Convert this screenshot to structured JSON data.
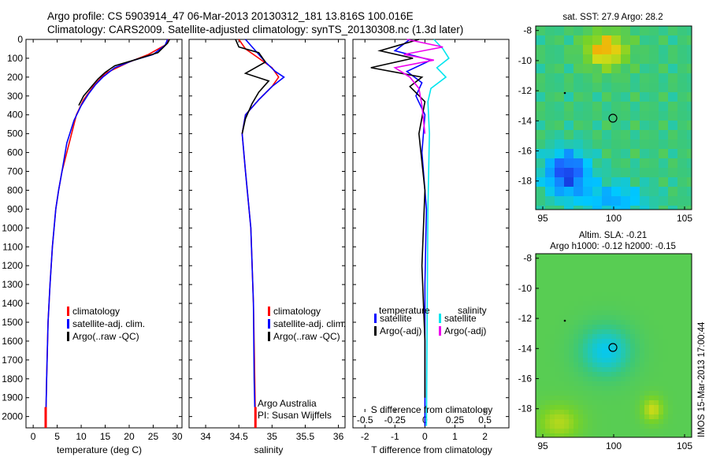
{
  "header": {
    "line1": "Argo profile: CS 5903914_47 06-Mar-2013 20130312_181 13.816S 100.016E",
    "line2": "Climatology: CARS2009. Satellite-adjusted climatology: synTS_20130308.nc (1.3d later)"
  },
  "depth_ticks": [
    "0",
    "100",
    "200",
    "300",
    "400",
    "500",
    "600",
    "700",
    "800",
    "900",
    "1000",
    "1100",
    "1200",
    "1300",
    "1400",
    "1500",
    "1600",
    "1700",
    "1800",
    "1900",
    "2000"
  ],
  "colors": {
    "climatology": "#ff0000",
    "satellite": "#0000ff",
    "argo": "#000000",
    "sat_diff_s": "#00e5ee",
    "argo_diff_s": "#ee00ee"
  },
  "chart_data": [
    {
      "type": "line",
      "xlabel": "temperature (deg C)",
      "ylabel": "",
      "xlim": [
        -1.5,
        31
      ],
      "ylim": [
        2060,
        0
      ],
      "x_ticks": [
        "0",
        "5",
        "10",
        "15",
        "20",
        "25",
        "30"
      ],
      "legend": [
        "climatology",
        "satellite-adj. clim.",
        "Argo(..raw -QC)"
      ],
      "legend_position": "lower-center",
      "series": [
        {
          "name": "climatology",
          "color": "#ff0000",
          "x": [
            28.3,
            27.5,
            24,
            20,
            15,
            12.5,
            10.5,
            9,
            8,
            7,
            6,
            5.3,
            4.7,
            4,
            3.5,
            3.1,
            2.8,
            2.6
          ],
          "y": [
            0,
            30,
            80,
            120,
            180,
            250,
            320,
            400,
            500,
            600,
            700,
            800,
            900,
            1100,
            1300,
            1500,
            1800,
            2050
          ]
        },
        {
          "name": "satellite-adj. clim.",
          "color": "#0000ff",
          "x": [
            28,
            27.5,
            25,
            21,
            17,
            14.5,
            13,
            11.5,
            10,
            8.5,
            7,
            6,
            5.3,
            4.7,
            4,
            3.5,
            3.1,
            2.8,
            2.6
          ],
          "y": [
            0,
            30,
            80,
            110,
            150,
            200,
            240,
            290,
            350,
            430,
            550,
            700,
            800,
            900,
            1100,
            1300,
            1500,
            1800,
            2050
          ]
        },
        {
          "name": "Argo(..raw -QC)",
          "color": "#000000",
          "x": [
            28.4,
            28,
            26,
            21,
            17,
            15,
            13.5,
            12.5,
            11.5,
            10.5,
            9.5
          ],
          "y": [
            0,
            20,
            70,
            110,
            140,
            175,
            210,
            240,
            270,
            300,
            350
          ]
        }
      ]
    },
    {
      "type": "line",
      "xlabel": "salinity",
      "ylabel": "",
      "xlim": [
        33.75,
        36.1
      ],
      "ylim": [
        2060,
        0
      ],
      "x_ticks": [
        "34",
        "34.5",
        "35",
        "35.5",
        "36"
      ],
      "legend": [
        "climatology",
        "satellite-adj. clim.",
        "Argo(..raw -QC)"
      ],
      "annotations": [
        "Argo Australia",
        "PI: Susan Wijffels"
      ],
      "series": [
        {
          "name": "climatology",
          "color": "#ff0000",
          "x": [
            34.5,
            34.6,
            34.8,
            35,
            35.1,
            35,
            34.8,
            34.6,
            34.55,
            34.6,
            34.68,
            34.72,
            34.74,
            34.75
          ],
          "y": [
            0,
            50,
            100,
            150,
            200,
            250,
            320,
            400,
            500,
            700,
            1000,
            1400,
            1800,
            2050
          ]
        },
        {
          "name": "satellite-adj. clim.",
          "color": "#0000ff",
          "x": [
            34.6,
            34.75,
            34.9,
            35.05,
            35.18,
            35,
            34.8,
            34.6,
            34.55,
            34.6,
            34.68,
            34.72,
            34.73,
            34.74
          ],
          "y": [
            0,
            60,
            120,
            170,
            200,
            250,
            320,
            400,
            500,
            700,
            1000,
            1400,
            1800,
            1950
          ]
        },
        {
          "name": "Argo(..raw -QC)",
          "color": "#000000",
          "x": [
            34.45,
            34.5,
            34.8,
            34.9,
            34.6,
            34.95,
            34.8,
            34.7,
            34.6,
            34.55
          ],
          "y": [
            0,
            40,
            70,
            120,
            180,
            220,
            280,
            340,
            420,
            500
          ]
        }
      ]
    },
    {
      "type": "line",
      "xlabel": "T difference from climatology",
      "ylabel": "",
      "title_bottom": "S difference from climatology",
      "xlim": [
        -2.4,
        2.8
      ],
      "ylim": [
        2060,
        0
      ],
      "x_ticks": [
        "-2",
        "-1",
        "0",
        "1",
        "2"
      ],
      "top_ticks": [
        "-0.5",
        "-0.25",
        "0",
        "0.25",
        "0.5"
      ],
      "legend": [
        {
          "group": "temperature",
          "items": [
            "satellite",
            "Argo(-adj)"
          ]
        },
        {
          "group": "salinity",
          "items": [
            "satellite",
            "Argo(-adj)"
          ]
        }
      ],
      "series": [
        {
          "name": "T satellite",
          "color": "#0000ff",
          "x": [
            -0.5,
            -1,
            0.2,
            -0.6,
            -0.1,
            -0.3,
            0,
            -0.1,
            0.05,
            0,
            0,
            0
          ],
          "y": [
            0,
            60,
            110,
            170,
            230,
            300,
            400,
            600,
            900,
            1300,
            1700,
            2050
          ]
        },
        {
          "name": "T Argo(-adj)",
          "color": "#000000",
          "x": [
            -0.2,
            -1.5,
            -0.4,
            -1.8,
            -0.1,
            -0.5,
            0,
            -0.2,
            0,
            -0.1,
            0,
            0
          ],
          "y": [
            0,
            60,
            100,
            150,
            200,
            250,
            330,
            500,
            800,
            1200,
            1600,
            1900
          ]
        },
        {
          "name": "S satellite",
          "color": "#00e5ee",
          "x": [
            0.3,
            0.6,
            0.8,
            0.4,
            0.7,
            0.2,
            0.1,
            0.15,
            0.1,
            0.05
          ],
          "y": [
            0,
            50,
            100,
            150,
            200,
            260,
            330,
            500,
            900,
            2050
          ]
        },
        {
          "name": "S Argo(-adj)",
          "color": "#ee00ee",
          "x": [
            -0.6,
            0.6,
            -0.7,
            0.3,
            -1,
            -0.5,
            -0.2,
            -0.1,
            0
          ],
          "y": [
            0,
            40,
            80,
            110,
            150,
            200,
            260,
            350,
            500
          ]
        }
      ]
    }
  ],
  "maps": [
    {
      "title": "sat. SST: 27.9 Argo: 28.2",
      "x_ticks": [
        "95",
        "100",
        "105"
      ],
      "y_ticks": [
        "-8",
        "-10",
        "-12",
        "-14",
        "-16",
        "-18"
      ],
      "marker": {
        "lon": 100.016,
        "lat": -13.816
      }
    },
    {
      "title_line1": "Altim. SLA: -0.21",
      "title_line2": "Argo h1000: -0.12 h2000: -0.15",
      "x_ticks": [
        "95",
        "100",
        "105"
      ],
      "y_ticks": [
        "-8",
        "-10",
        "-12",
        "-14",
        "-16",
        "-18"
      ],
      "marker": {
        "lon": 100.016,
        "lat": -13.816
      }
    }
  ],
  "footer": {
    "vertical_label": "IMOS 15-Mar-2013 17:00:44"
  }
}
